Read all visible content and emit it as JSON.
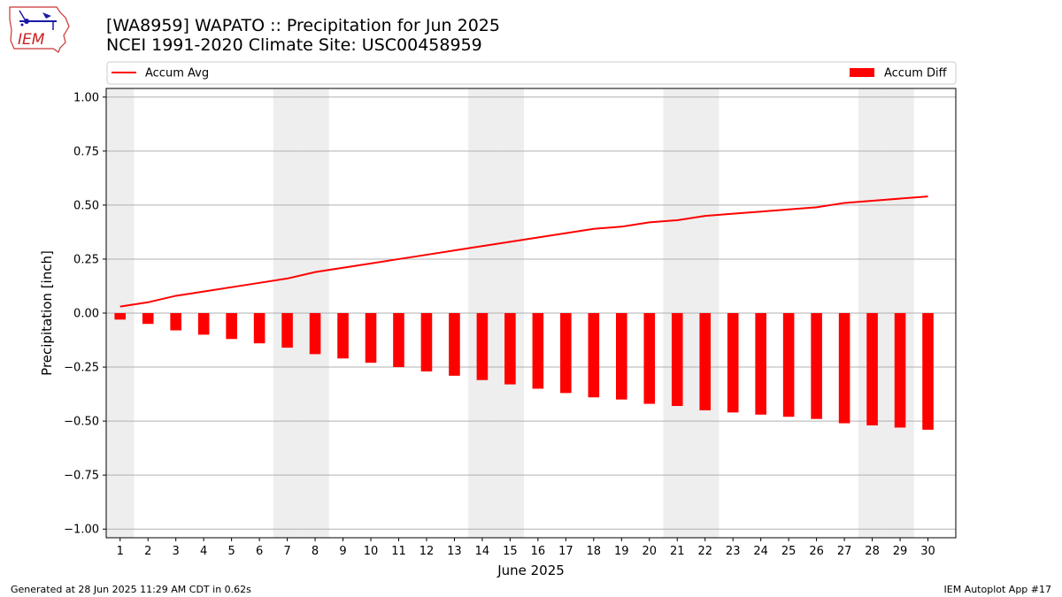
{
  "title_line1": "[WA8959] WAPATO :: Precipitation for Jun 2025",
  "title_line2": "NCEI 1991-2020 Climate Site: USC00458959",
  "logo_text": "IEM",
  "footer_left": "Generated at 28 Jun 2025 11:29 AM CDT in 0.62s",
  "footer_right": "IEM Autoplot App #17",
  "chart_data": {
    "type": "bar",
    "title": "[WA8959] WAPATO :: Precipitation for Jun 2025",
    "subtitle": "NCEI 1991-2020 Climate Site: USC00458959",
    "xlabel": "June 2025",
    "ylabel": "Precipitation [inch]",
    "ylim": [
      -1.04,
      1.04
    ],
    "yticks": [
      1.0,
      0.75,
      0.5,
      0.25,
      0.0,
      -0.25,
      -0.5,
      -0.75,
      -1.0
    ],
    "ytick_labels": [
      "1.00",
      "0.75",
      "0.50",
      "0.25",
      "0.00",
      "−0.25",
      "−0.50",
      "−0.75",
      "−1.00"
    ],
    "grid": true,
    "legend_left_placement": "top-left",
    "legend_right_placement": "top-right",
    "weekend_shading_days": [
      1,
      7,
      8,
      14,
      15,
      21,
      22,
      28,
      29
    ],
    "shading_color": "#eeeeee",
    "categories": [
      "1",
      "2",
      "3",
      "4",
      "5",
      "6",
      "7",
      "8",
      "9",
      "10",
      "11",
      "12",
      "13",
      "14",
      "15",
      "16",
      "17",
      "18",
      "19",
      "20",
      "21",
      "22",
      "23",
      "24",
      "25",
      "26",
      "27",
      "28",
      "29",
      "30"
    ],
    "series": [
      {
        "name": "Accum Avg",
        "type": "line",
        "color": "#ff0000",
        "values": [
          0.03,
          0.05,
          0.08,
          0.1,
          0.12,
          0.14,
          0.16,
          0.19,
          0.21,
          0.23,
          0.25,
          0.27,
          0.29,
          0.31,
          0.33,
          0.35,
          0.37,
          0.39,
          0.4,
          0.42,
          0.43,
          0.45,
          0.46,
          0.47,
          0.48,
          0.49,
          0.51,
          0.52,
          0.53,
          0.54
        ]
      },
      {
        "name": "Accum Diff",
        "type": "bar",
        "color": "#ff0000",
        "values": [
          -0.03,
          -0.05,
          -0.08,
          -0.1,
          -0.12,
          -0.14,
          -0.16,
          -0.19,
          -0.21,
          -0.23,
          -0.25,
          -0.27,
          -0.29,
          -0.31,
          -0.33,
          -0.35,
          -0.37,
          -0.39,
          -0.4,
          -0.42,
          -0.43,
          -0.45,
          -0.46,
          -0.47,
          -0.48,
          -0.49,
          -0.51,
          -0.52,
          -0.53,
          -0.54
        ]
      }
    ]
  }
}
